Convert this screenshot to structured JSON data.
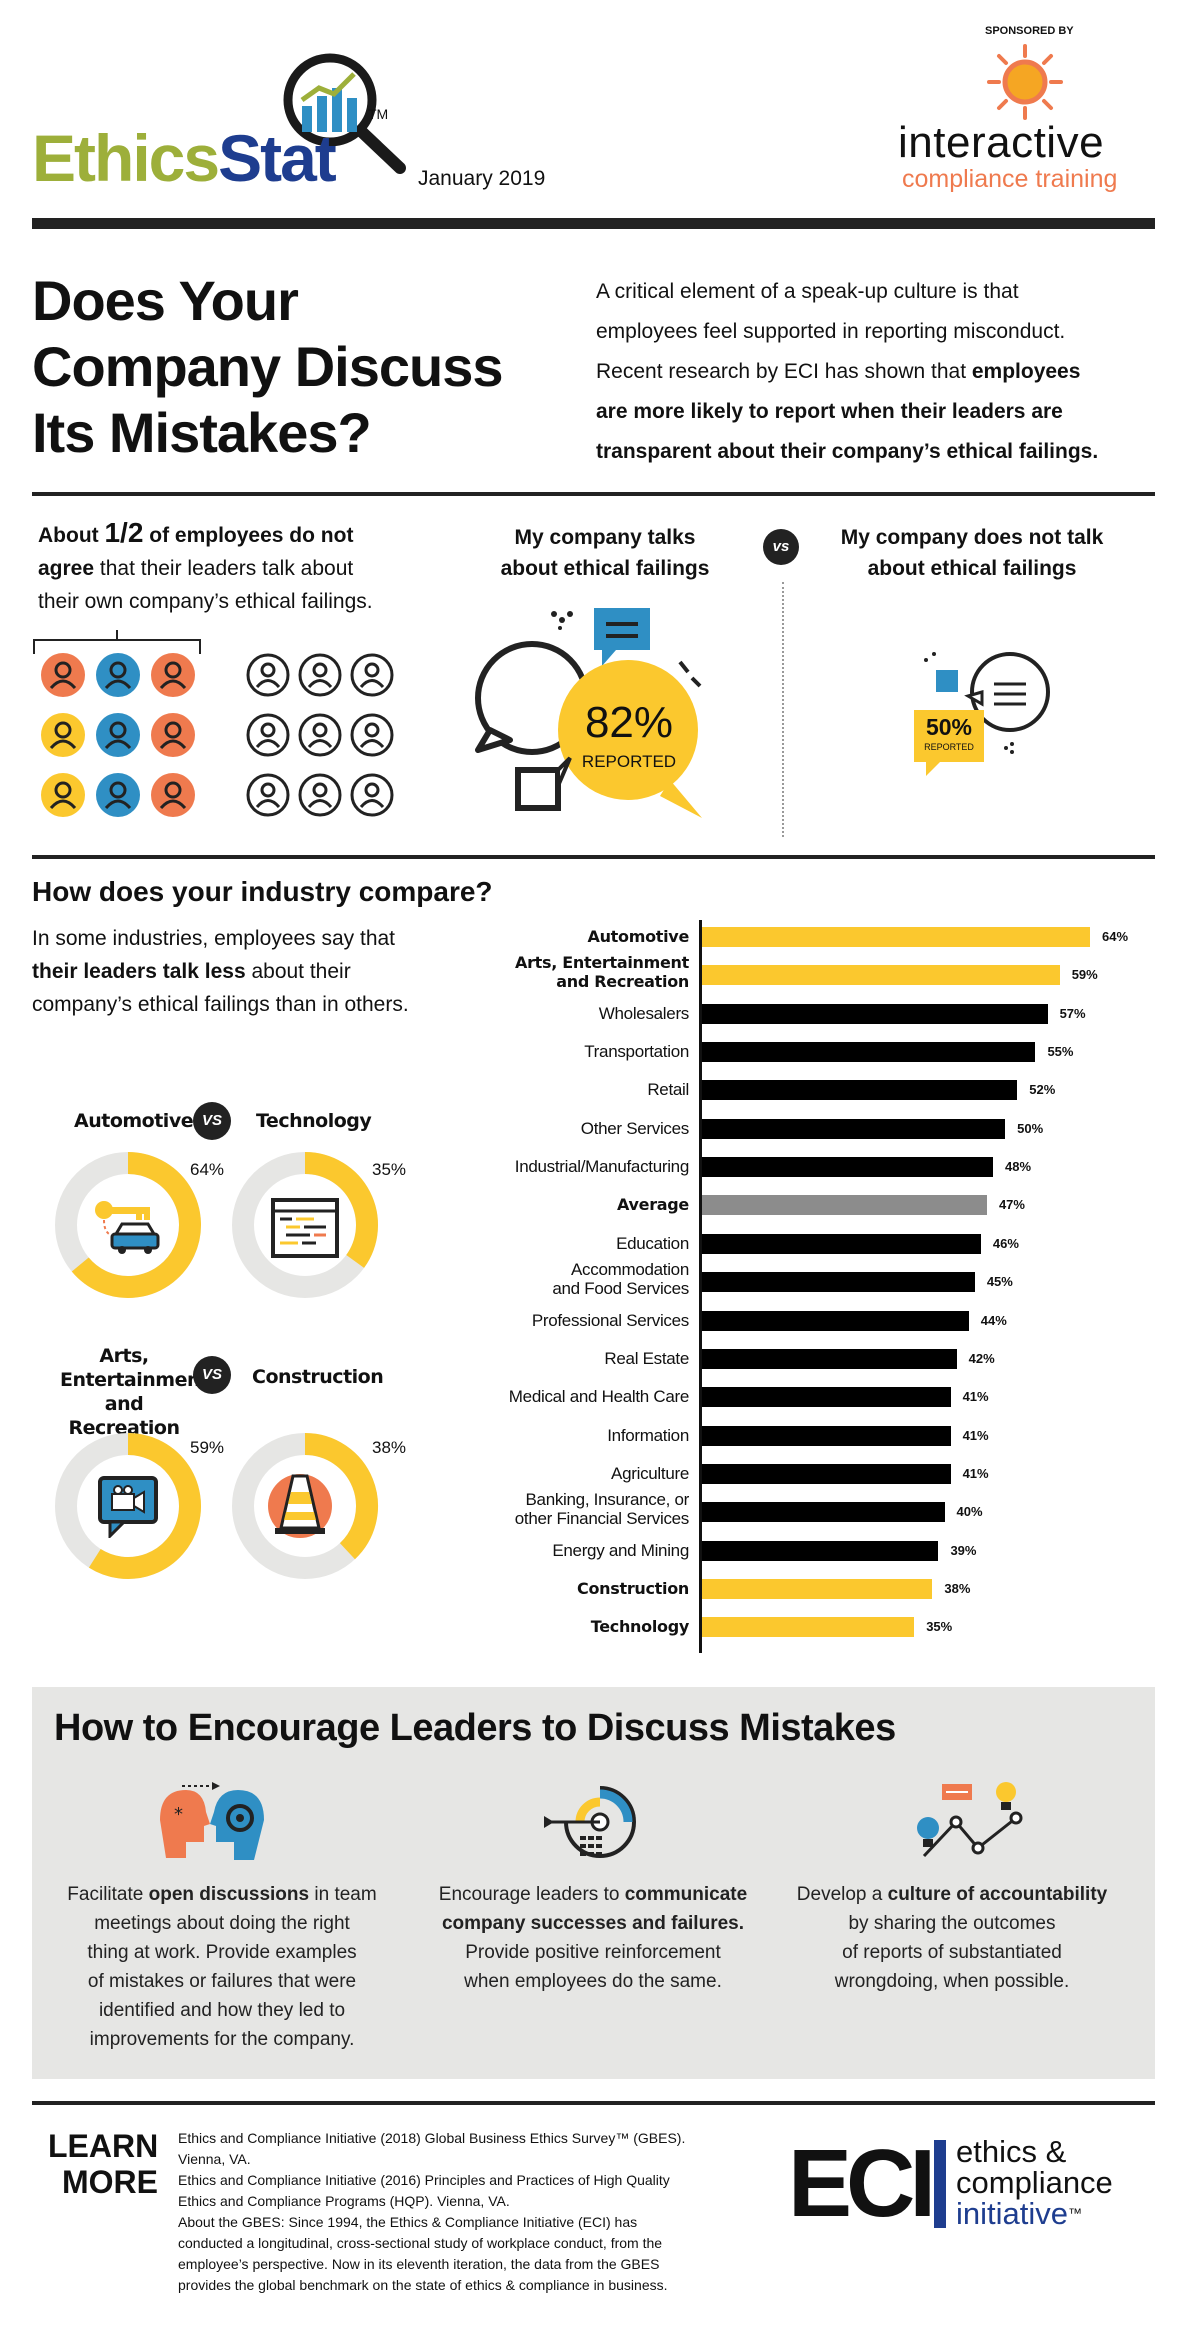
{
  "header": {
    "logo_ethics": "Ethics",
    "logo_stat": "Stat",
    "logo_tm": "TM",
    "date": "January 2019",
    "sponsored_by": "SPONSORED BY",
    "sponsor_name": "interactive",
    "sponsor_tagline": "compliance training"
  },
  "hero": {
    "title_line1": "Does Your",
    "title_line2": "Company Discuss",
    "title_line3": "Its Mistakes?",
    "intro_l1": "A critical element of a speak-up culture is that",
    "intro_l2": "employees feel supported in reporting misconduct.",
    "intro_l3a": "Recent research by ECI has shown that ",
    "intro_l3b": "employees",
    "intro_l4": "are more likely to report when their leaders are",
    "intro_l5": "transparent about their company’s ethical failings."
  },
  "stat_section": {
    "about_a": "About ",
    "half": "1/2",
    "about_b": " of employees do not",
    "about_c": "agree",
    "about_d": " that their leaders talk about",
    "about_e": "their own company’s ethical failings.",
    "talks_l1": "My company talks",
    "talks_l2": "about ethical failings",
    "vs": "vs",
    "not_l1": "My company does not talk",
    "not_l2": "about ethical failings",
    "talks_pct": "82%",
    "talks_reported": "REPORTED",
    "not_pct": "50%",
    "not_reported": "REPORTED"
  },
  "industry": {
    "heading": "How does your industry compare?",
    "desc_l1": "In some industries, employees say that",
    "desc_l2a": "their leaders talk less",
    "desc_l2b": " about their",
    "desc_l3": "company’s ethical failings than in others."
  },
  "donuts": {
    "vs": "VS",
    "items": [
      {
        "title": "Automotive",
        "value": 64,
        "label": "64%"
      },
      {
        "title": "Technology",
        "value": 35,
        "label": "35%"
      },
      {
        "title_l1": "Arts,",
        "title_l2": "Entertainment",
        "title_l3": "and Recreation",
        "value": 59,
        "label": "59%"
      },
      {
        "title": "Construction",
        "value": 38,
        "label": "38%"
      }
    ]
  },
  "chart_data": {
    "type": "bar",
    "orientation": "horizontal",
    "categories": [
      "Automotive",
      "Arts, Entertainment and Recreation",
      "Wholesalers",
      "Transportation",
      "Retail",
      "Other Services",
      "Industrial/Manufacturing",
      "Average",
      "Education",
      "Accommodation and Food Services",
      "Professional Services",
      "Real Estate",
      "Medical and Health Care",
      "Information",
      "Agriculture",
      "Banking, Insurance, or other Financial Services",
      "Energy and Mining",
      "Construction",
      "Technology"
    ],
    "label_lines": [
      [
        "Automotive"
      ],
      [
        "Arts, Entertainment",
        "and Recreation"
      ],
      [
        "Wholesalers"
      ],
      [
        "Transportation"
      ],
      [
        "Retail"
      ],
      [
        "Other Services"
      ],
      [
        "Industrial/Manufacturing"
      ],
      [
        "Average"
      ],
      [
        "Education"
      ],
      [
        "Accommodation",
        "and Food Services"
      ],
      [
        "Professional Services"
      ],
      [
        "Real Estate"
      ],
      [
        "Medical and Health Care"
      ],
      [
        "Information"
      ],
      [
        "Agriculture"
      ],
      [
        "Banking, Insurance, or",
        "other Financial Services"
      ],
      [
        "Energy and Mining"
      ],
      [
        "Construction"
      ],
      [
        "Technology"
      ]
    ],
    "values": [
      64,
      59,
      57,
      55,
      52,
      50,
      48,
      47,
      46,
      45,
      44,
      42,
      41,
      41,
      41,
      40,
      39,
      38,
      35
    ],
    "value_labels": [
      "64%",
      "59%",
      "57%",
      "55%",
      "52%",
      "50%",
      "48%",
      "47%",
      "46%",
      "45%",
      "44%",
      "42%",
      "41%",
      "41%",
      "41%",
      "40%",
      "39%",
      "38%",
      "35%"
    ],
    "highlight": [
      "yellow",
      "yellow",
      "black",
      "black",
      "black",
      "black",
      "black",
      "gray",
      "black",
      "black",
      "black",
      "black",
      "black",
      "black",
      "black",
      "black",
      "black",
      "yellow",
      "yellow"
    ],
    "bold": [
      true,
      true,
      false,
      false,
      false,
      false,
      false,
      true,
      false,
      false,
      false,
      false,
      false,
      false,
      false,
      false,
      false,
      true,
      true
    ],
    "xlim": [
      0,
      64
    ],
    "colors": {
      "yellow": "#FBC82E",
      "black": "#000000",
      "gray": "#8C8C8C"
    }
  },
  "encourage": {
    "heading": "How to Encourage Leaders to Discuss Mistakes",
    "tip1": [
      "Facilitate |open discussions| in team",
      "meetings about doing the right",
      "thing at work. Provide examples",
      "of mistakes or failures that were",
      "identified and how they led to",
      "improvements for the company."
    ],
    "tip2": [
      "Encourage leaders to |communicate|",
      "|company successes and failures.|",
      "Provide positive reinforcement",
      "when employees do the same."
    ],
    "tip3": [
      "Develop a |culture of accountability|",
      "by sharing the outcomes",
      "of reports of substantiated",
      "wrongdoing, when possible."
    ]
  },
  "footer": {
    "learn": "LEARN",
    "more": "MORE",
    "ref1_l1": "Ethics and Compliance Initiative (2018) Global Business Ethics Survey™ (GBES).",
    "ref1_l2": "Vienna, VA.",
    "ref2_l1": "Ethics and Compliance Initiative (2016) Principles and Practices of High Quality",
    "ref2_l2": "Ethics and Compliance Programs (HQP). Vienna, VA.",
    "about_l1": "About the GBES: Since 1994, the Ethics & Compliance Initiative (ECI) has",
    "about_l2": "conducted a longitudinal, cross-sectional study of workplace conduct, from the",
    "about_l3": "employee’s perspective. Now in its eleventh iteration, the data from the GBES",
    "about_l4": "provides the global benchmark on the state of ethics & compliance in business.",
    "eci": "ECI",
    "eci_l1": "ethics &",
    "eci_l2": "compliance",
    "eci_l3": "initiative",
    "eci_tm": "™"
  },
  "colors": {
    "yellow": "#FBC82E",
    "orange": "#EF7A4E",
    "blue": "#2F8FC4",
    "green_logo": "#9DAF3A",
    "navy": "#1E3D8F",
    "gray_panel": "#E6E6E4"
  }
}
